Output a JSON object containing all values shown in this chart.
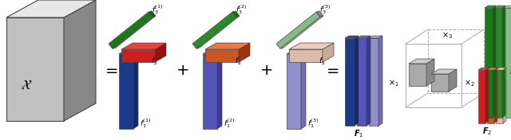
{
  "bg_color": "#ffffff",
  "tensor_X": {
    "face_color": "#c0c0c0",
    "top_color": "#e8e8e8",
    "side_color": "#888888"
  },
  "terms": [
    {
      "bar_color": "#1a3a8c",
      "bar_dark": "#122870",
      "bar_top": "#2a4aaa",
      "rod_color": "#1a7a1a",
      "rod_top": "#2a9a2a",
      "rod_dark": "#126012",
      "box_color": "#cc2020",
      "box_top": "#ee4040",
      "box_side": "#991010",
      "sup": "1"
    },
    {
      "bar_color": "#5555bb",
      "bar_dark": "#3a3a99",
      "bar_top": "#6666cc",
      "rod_color": "#2a8a2a",
      "rod_top": "#44aa44",
      "rod_dark": "#1a6a1a",
      "box_color": "#cc5520",
      "box_top": "#ee7744",
      "box_side": "#993310",
      "sup": "2"
    },
    {
      "bar_color": "#9090cc",
      "bar_dark": "#7070aa",
      "bar_top": "#aaaadd",
      "rod_color": "#88bb88",
      "rod_top": "#aaccaa",
      "rod_dark": "#669966",
      "box_color": "#ddbbaa",
      "box_top": "#eeccbb",
      "box_side": "#ccaa99",
      "sup": "3"
    }
  ],
  "F1_colors": [
    "#1a3a8c",
    "#5555bb",
    "#9090cc"
  ],
  "F1_tops": [
    "#2a4aaa",
    "#6666cc",
    "#aaaadd"
  ],
  "F1_darks": [
    "#122870",
    "#3a3a99",
    "#7070aa"
  ],
  "F2_colors": [
    "#cc2020",
    "#cc5520",
    "#ddbbaa"
  ],
  "F2_tops": [
    "#ee4040",
    "#ee7744",
    "#eeccbb"
  ],
  "F2_darks": [
    "#991010",
    "#993310",
    "#ccaa99"
  ],
  "F3_colors": [
    "#1a7a1a",
    "#2a8a2a",
    "#88bb88"
  ],
  "F3_tops": [
    "#2a9a2a",
    "#44aa44",
    "#aaccaa"
  ],
  "F3_darks": [
    "#126012",
    "#1a6a1a",
    "#669966"
  ],
  "core_face": "#b0b0b0",
  "core_top": "#d0d0d0",
  "core_side": "#909090"
}
